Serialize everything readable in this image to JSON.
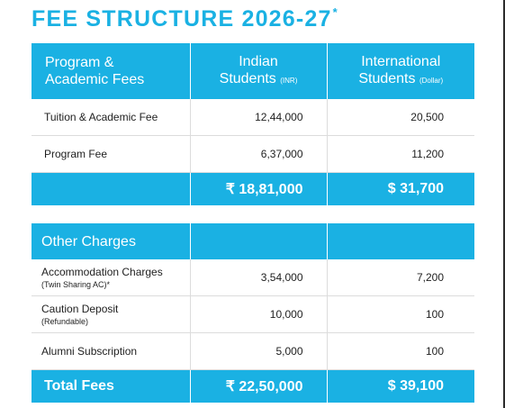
{
  "title": {
    "text": "FEE STRUCTURE 2026-27",
    "mark": "*"
  },
  "fees_table": {
    "header": {
      "col1": [
        "Program &",
        "Academic Fees"
      ],
      "col2": {
        "line1": "Indian",
        "line2": "Students",
        "unit": "(INR)"
      },
      "col3": {
        "line1": "International",
        "line2": "Students",
        "unit": "(Dollar)"
      }
    },
    "rows": [
      {
        "label": "Tuition & Academic Fee",
        "inr": "12,44,000",
        "usd": "20,500"
      },
      {
        "label": "Program Fee",
        "inr": "6,37,000",
        "usd": "11,200"
      }
    ],
    "subtotal": {
      "inr": "₹ 18,81,000",
      "usd": "$ 31,700"
    }
  },
  "other_table": {
    "header": "Other Charges",
    "rows": [
      {
        "label": "Accommodation Charges",
        "sublabel": "(Twin Sharing AC)*",
        "inr": "3,54,000",
        "usd": "7,200"
      },
      {
        "label": "Caution Deposit",
        "sublabel": "(Refundable)",
        "inr": "10,000",
        "usd": "100"
      },
      {
        "label": "Alumni Subscription",
        "sublabel": "",
        "inr": "5,000",
        "usd": "100"
      }
    ],
    "total": {
      "label": "Total Fees",
      "inr": "₹ 22,50,000",
      "usd": "$ 39,100"
    }
  },
  "colors": {
    "accent": "#1ab1e3",
    "text": "#1e1e1e"
  }
}
